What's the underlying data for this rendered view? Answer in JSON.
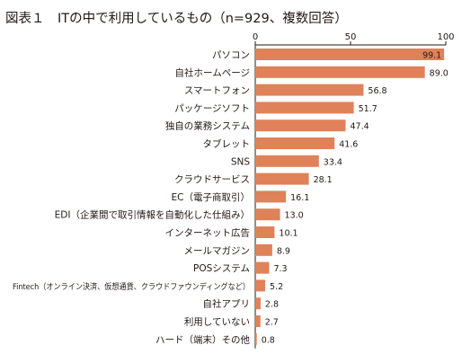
{
  "chart_data": {
    "type": "bar",
    "orientation": "horizontal",
    "title": "図表１　ITの中で利用しているもの（n=929、複数回答）",
    "categories": [
      "パソコン",
      "自社ホームページ",
      "スマートフォン",
      "パッケージソフト",
      "独自の業務システム",
      "タブレット",
      "SNS",
      "クラウドサービス",
      "EC（電子商取引）",
      "EDI（企業間で取引情報を自動化した仕組み）",
      "インターネット広告",
      "メールマガジン",
      "POSシステム",
      "Fintech（オンライン決済、仮想通貨、クラウドファウンディングなど）",
      "自社アプリ",
      "利用していない",
      "ハード（端末）その他"
    ],
    "values": [
      99.1,
      89.0,
      56.8,
      51.7,
      47.4,
      41.6,
      33.4,
      28.1,
      16.1,
      13.0,
      10.1,
      8.9,
      7.3,
      5.2,
      2.8,
      2.7,
      0.8
    ],
    "value_labels": [
      "99.1",
      "89.0",
      "56.8",
      "51.7",
      "47.4",
      "41.6",
      "33.4",
      "28.1",
      "16.1",
      "13.0",
      "10.1",
      "8.9",
      "7.3",
      "5.2",
      "2.8",
      "2.7",
      "0.8"
    ],
    "xlim": [
      0,
      100
    ],
    "xticks": [
      "0",
      "50",
      "100"
    ],
    "bar_color": "#df825a",
    "grid": false,
    "legend": "none"
  }
}
